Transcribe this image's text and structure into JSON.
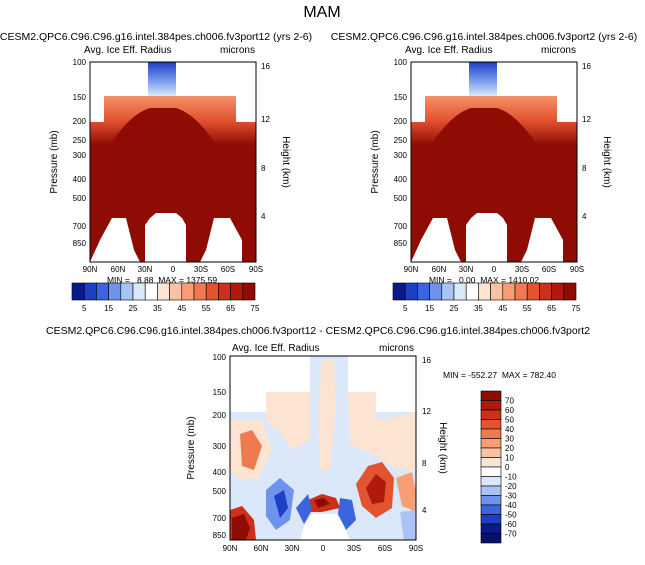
{
  "page_title": "MAM",
  "chart_data": [
    {
      "type": "heatmap",
      "id": "panel1",
      "title": "CESM2.QPC6.C96.C96.g16.intel.384pes.ch006.fv3port12 (yrs 2-6)",
      "left_label": "Avg. Ice Eff. Radius",
      "right_label": "microns",
      "ylabel": "Pressure (mb)",
      "ylabel_right": "Height (km)",
      "x_ticks": [
        "90N",
        "60N",
        "30N",
        "0",
        "30S",
        "60S",
        "90S"
      ],
      "y_ticks": [
        "100",
        "150",
        "200",
        "250",
        "300",
        "400",
        "500",
        "700",
        "850"
      ],
      "y_ticks_right": [
        "16",
        "12",
        "8",
        "4"
      ],
      "stats": "MIN =   8.88  MAX = 1375.59",
      "colorbar_labels": [
        "5",
        "15",
        "25",
        "35",
        "45",
        "55",
        "65",
        "75"
      ],
      "colorbar_colors": [
        "#0a1a8c",
        "#1c3fc4",
        "#3a64e0",
        "#6e93ec",
        "#a8c3f4",
        "#dbe8fa",
        "#ffffff",
        "#fde3d2",
        "#fbc2a2",
        "#f79e74",
        "#f07a4f",
        "#e3532f",
        "#cc3018",
        "#b01a0c",
        "#8e0c04"
      ]
    },
    {
      "type": "heatmap",
      "id": "panel2",
      "title": "CESM2.QPC6.C96.C96.g16.intel.384pes.ch006.fv3port2 (yrs 2-6)",
      "left_label": "Avg. Ice Eff. Radius",
      "right_label": "microns",
      "ylabel": "Pressure (mb)",
      "ylabel_right": "Height (km)",
      "x_ticks": [
        "90N",
        "60N",
        "30N",
        "0",
        "30S",
        "60S",
        "90S"
      ],
      "y_ticks": [
        "100",
        "150",
        "200",
        "250",
        "300",
        "400",
        "500",
        "700",
        "850"
      ],
      "y_ticks_right": [
        "16",
        "12",
        "8",
        "4"
      ],
      "stats": "MIN =   0.00  MAX = 1410.02",
      "colorbar_labels": [
        "5",
        "15",
        "25",
        "35",
        "45",
        "55",
        "65",
        "75"
      ],
      "colorbar_colors": [
        "#0a1a8c",
        "#1c3fc4",
        "#3a64e0",
        "#6e93ec",
        "#a8c3f4",
        "#dbe8fa",
        "#ffffff",
        "#fde3d2",
        "#fbc2a2",
        "#f79e74",
        "#f07a4f",
        "#e3532f",
        "#cc3018",
        "#b01a0c",
        "#8e0c04"
      ]
    },
    {
      "type": "heatmap",
      "id": "panel3",
      "title": "CESM2.QPC6.C96.C96.g16.intel.384pes.ch006.fv3port12 - CESM2.QPC6.C96.C96.g16.intel.384pes.ch006.fv3port2",
      "left_label": "Avg. Ice Eff. Radius",
      "right_label": "microns",
      "ylabel": "Pressure (mb)",
      "ylabel_right": "Height (km)",
      "x_ticks": [
        "90N",
        "60N",
        "30N",
        "0",
        "30S",
        "60S",
        "90S"
      ],
      "y_ticks": [
        "100",
        "150",
        "200",
        "300",
        "400",
        "500",
        "700",
        "850"
      ],
      "y_ticks_right": [
        "16",
        "12",
        "8",
        "4"
      ],
      "stats": "MIN = -552.27  MAX = 782.40",
      "colorbar_labels": [
        "70",
        "60",
        "50",
        "40",
        "30",
        "20",
        "10",
        "0",
        "-10",
        "-20",
        "-30",
        "-40",
        "-50",
        "-60",
        "-70"
      ],
      "colorbar_colors": [
        "#8e0c04",
        "#b01a0c",
        "#cc3018",
        "#e3532f",
        "#f07a4f",
        "#f79e74",
        "#fbc2a2",
        "#fde3d2",
        "#ffffff",
        "#dbe8fa",
        "#a8c3f4",
        "#6e93ec",
        "#3a64e0",
        "#1c3fc4",
        "#0a1a8c",
        "#06126a"
      ]
    }
  ]
}
